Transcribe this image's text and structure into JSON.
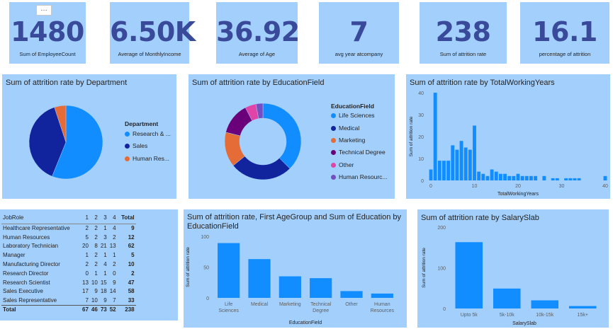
{
  "kpis": [
    {
      "value": "1480",
      "label": "Sum of EmployeeCount"
    },
    {
      "value": "6.50K",
      "label": "Average of MonthlyIncome"
    },
    {
      "value": "36.92",
      "label": "Average of Age"
    },
    {
      "value": "7",
      "label": "avg year atcompany"
    },
    {
      "value": "238",
      "label": "Sum of attrition rate"
    },
    {
      "value": "16.1",
      "label": "percentage of attrition"
    }
  ],
  "more_options": "…",
  "dept_chart": {
    "title": "Sum of attrition rate by Department",
    "legend_title": "Department",
    "legend": [
      "Research & ...",
      "Sales",
      "Human Res..."
    ],
    "chart_data": {
      "type": "pie",
      "title": "Sum of attrition rate by Department",
      "labels": [
        "Research & Development",
        "Sales",
        "Human Resources"
      ],
      "values": [
        133,
        92,
        12
      ],
      "colors": [
        "#118dff",
        "#12239e",
        "#e66c37"
      ]
    }
  },
  "edu_chart": {
    "title": "Sum of attrition rate by EducationField",
    "legend_title": "EducationField",
    "legend": [
      "Life Sciences",
      "Medical",
      "Marketing",
      "Technical Degree",
      "Other",
      "Human Resourc..."
    ],
    "chart_data": {
      "type": "pie",
      "title": "Sum of attrition rate by EducationField",
      "labels": [
        "Life Sciences",
        "Medical",
        "Marketing",
        "Technical Degree",
        "Other",
        "Human Resources"
      ],
      "values": [
        89,
        63,
        35,
        32,
        11,
        7
      ],
      "colors": [
        "#118dff",
        "#12239e",
        "#e66c37",
        "#6b007b",
        "#e044a7",
        "#744ec2"
      ]
    }
  },
  "years_chart": {
    "title": "Sum of attrition rate by TotalWorkingYears",
    "ylabel": "Sum of attrition rate",
    "xlabel": "TotalWorkingYears",
    "yticks": [
      "40",
      "30",
      "20",
      "10",
      "0"
    ],
    "xticks": [
      "0",
      "10",
      "20",
      "30",
      "40"
    ],
    "chart_data": {
      "type": "bar",
      "title": "Sum of attrition rate by TotalWorkingYears",
      "xlabel": "TotalWorkingYears",
      "ylabel": "Sum of attrition rate",
      "ylim": [
        0,
        40
      ],
      "x": [
        0,
        1,
        2,
        3,
        4,
        5,
        6,
        7,
        8,
        9,
        10,
        11,
        12,
        13,
        14,
        15,
        16,
        17,
        18,
        19,
        20,
        21,
        22,
        23,
        24,
        26,
        28,
        29,
        31,
        32,
        33,
        34,
        40
      ],
      "values": [
        5,
        40,
        9,
        9,
        9,
        16,
        14,
        18,
        15,
        14,
        25,
        4,
        3,
        2,
        5,
        4,
        3,
        3,
        2,
        2,
        3,
        2,
        2,
        2,
        2,
        2,
        1,
        1,
        1,
        1,
        1,
        1,
        2
      ]
    }
  },
  "matrix": {
    "headers": [
      "JobRole",
      "1",
      "2",
      "3",
      "4",
      "Total"
    ],
    "rows": [
      [
        "Healthcare Representative",
        "2",
        "2",
        "1",
        "4",
        "9"
      ],
      [
        "Human Resources",
        "5",
        "2",
        "3",
        "2",
        "12"
      ],
      [
        "Laboratory Technician",
        "20",
        "8",
        "21",
        "13",
        "62"
      ],
      [
        "Manager",
        "1",
        "2",
        "1",
        "1",
        "5"
      ],
      [
        "Manufacturing Director",
        "2",
        "2",
        "4",
        "2",
        "10"
      ],
      [
        "Research Director",
        "0",
        "1",
        "1",
        "0",
        "2"
      ],
      [
        "Research Scientist",
        "13",
        "10",
        "15",
        "9",
        "47"
      ],
      [
        "Sales Executive",
        "17",
        "9",
        "18",
        "14",
        "58"
      ],
      [
        "Sales Representative",
        "7",
        "10",
        "9",
        "7",
        "33"
      ]
    ],
    "total": [
      "Total",
      "67",
      "46",
      "73",
      "52",
      "238"
    ]
  },
  "age_edu_chart": {
    "title": "Sum of attrition rate, First AgeGroup and Sum of Education by EducationField",
    "ylabel": "Sum of attrition rate",
    "xlabel": "EducationField",
    "yticks": [
      "100",
      "50",
      "0"
    ],
    "chart_data": {
      "type": "bar",
      "title": "Sum of attrition rate, First AgeGroup and Sum of Education by EducationField",
      "xlabel": "EducationField",
      "ylabel": "Sum of attrition rate",
      "ylim": [
        0,
        100
      ],
      "categories": [
        [
          "Life",
          "Sciences"
        ],
        [
          "Medical"
        ],
        [
          "Marketing"
        ],
        [
          "Technical",
          "Degree"
        ],
        [
          "Other"
        ],
        [
          "Human",
          "Resources"
        ]
      ],
      "values": [
        89,
        63,
        35,
        32,
        11,
        7
      ]
    }
  },
  "salary_chart": {
    "title": "Sum of attrition rate by SalarySlab",
    "ylabel": "Sum of attrition rate",
    "xlabel": "SalarySlab",
    "yticks": [
      "200",
      "100",
      "0"
    ],
    "chart_data": {
      "type": "bar",
      "title": "Sum of attrition rate by SalarySlab",
      "xlabel": "SalarySlab",
      "ylabel": "Sum of attrition rate",
      "ylim": [
        0,
        200
      ],
      "categories": [
        "Upto 5k",
        "5k-10k",
        "10k-15k",
        "15k+"
      ],
      "values": [
        163,
        49,
        20,
        6
      ]
    }
  }
}
